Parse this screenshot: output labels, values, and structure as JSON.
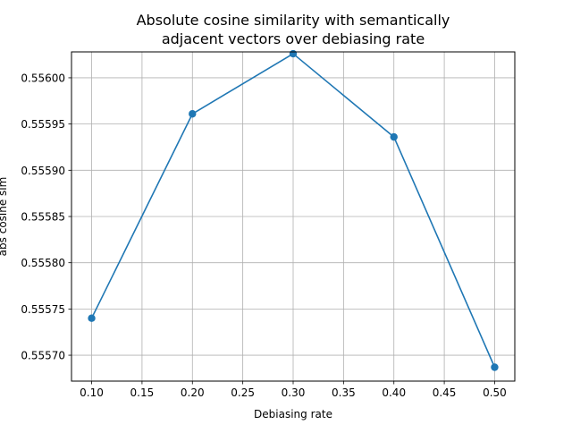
{
  "chart_data": {
    "type": "line",
    "title": [
      "Absolute cosine similarity with semantically",
      "adjacent vectors over debiasing rate"
    ],
    "xlabel": "Debiasing rate",
    "ylabel": "abs cosine sim",
    "xlim": [
      0.08,
      0.52
    ],
    "ylim": [
      0.555672,
      0.556028
    ],
    "xticks": [
      0.1,
      0.15,
      0.2,
      0.25,
      0.3,
      0.35,
      0.4,
      0.45,
      0.5
    ],
    "xtick_labels": [
      "0.10",
      "0.15",
      "0.20",
      "0.25",
      "0.30",
      "0.35",
      "0.40",
      "0.45",
      "0.50"
    ],
    "yticks": [
      0.5557,
      0.55575,
      0.5558,
      0.55585,
      0.5559,
      0.55595,
      0.556
    ],
    "ytick_labels": [
      "0.55570",
      "0.55575",
      "0.55580",
      "0.55585",
      "0.55590",
      "0.55595",
      "0.55600"
    ],
    "grid": true,
    "series": [
      {
        "x": [
          0.1,
          0.2,
          0.3,
          0.4,
          0.5
        ],
        "y": [
          0.55574,
          0.555961,
          0.556026,
          0.555936,
          0.555687
        ],
        "color": "#1f77b4",
        "marker": "circle"
      }
    ]
  }
}
